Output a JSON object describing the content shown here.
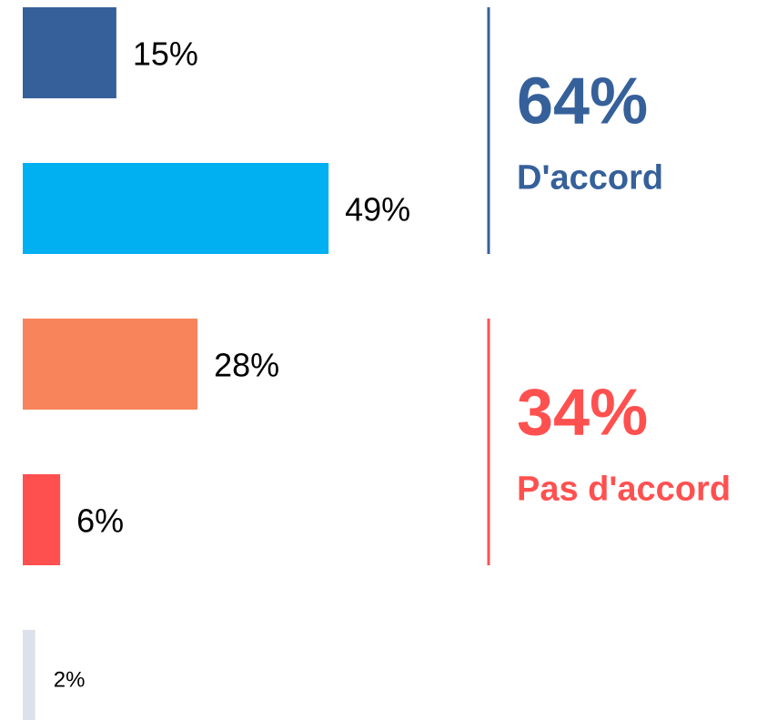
{
  "chart_data": {
    "type": "bar",
    "orientation": "horizontal",
    "values": [
      15,
      49,
      28,
      6,
      2
    ],
    "value_labels": [
      "15%",
      "49%",
      "28%",
      "6%",
      "2%"
    ],
    "colors": [
      "#36609a",
      "#00b0f0",
      "#f7845a",
      "#ff5050",
      "#dde1ea"
    ],
    "groups": [
      {
        "value": 64,
        "label": "64%",
        "name": "D'accord",
        "color": "#36609a",
        "members": [
          0,
          1
        ]
      },
      {
        "value": 34,
        "label": "34%",
        "name": "Pas d'accord",
        "color": "#ff5050",
        "members": [
          2,
          3
        ]
      }
    ]
  }
}
